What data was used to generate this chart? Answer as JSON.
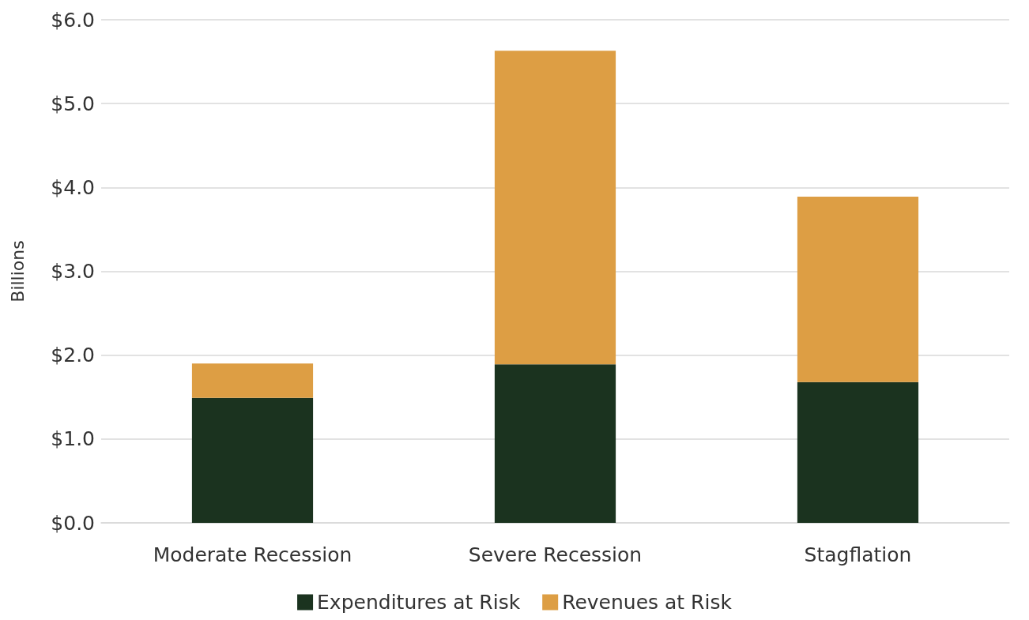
{
  "chart_data": {
    "type": "bar",
    "ylabel": "Billions",
    "categories": [
      "Moderate Recession",
      "Severe Recession",
      "Stagflation"
    ],
    "stacked": true,
    "series": [
      {
        "name": "Expenditures at Risk",
        "color": "#1b331f",
        "values": [
          1.49,
          1.89,
          1.68
        ]
      },
      {
        "name": "Revenues at Risk",
        "color": "#dd9e44",
        "values": [
          0.41,
          3.74,
          2.21
        ]
      }
    ],
    "ylim": [
      0,
      6
    ],
    "yticks": [
      {
        "value": 0,
        "label": "$0.0"
      },
      {
        "value": 1,
        "label": "$1.0"
      },
      {
        "value": 2,
        "label": "$2.0"
      },
      {
        "value": 3,
        "label": "$3.0"
      },
      {
        "value": 4,
        "label": "$4.0"
      },
      {
        "value": 5,
        "label": "$5.0"
      },
      {
        "value": 6,
        "label": "$6.0"
      }
    ],
    "grid": "y",
    "legend": "bottom"
  }
}
